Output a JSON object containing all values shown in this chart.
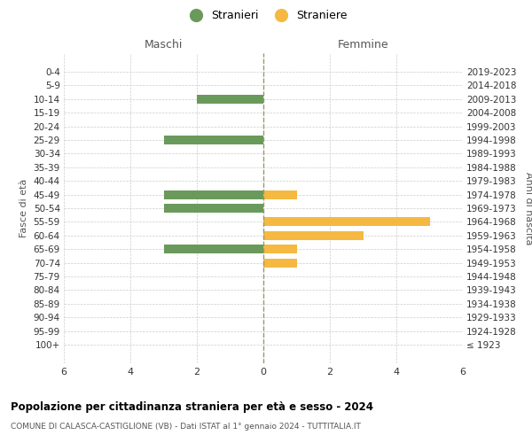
{
  "age_groups": [
    "100+",
    "95-99",
    "90-94",
    "85-89",
    "80-84",
    "75-79",
    "70-74",
    "65-69",
    "60-64",
    "55-59",
    "50-54",
    "45-49",
    "40-44",
    "35-39",
    "30-34",
    "25-29",
    "20-24",
    "15-19",
    "10-14",
    "5-9",
    "0-4"
  ],
  "birth_years": [
    "≤ 1923",
    "1924-1928",
    "1929-1933",
    "1934-1938",
    "1939-1943",
    "1944-1948",
    "1949-1953",
    "1954-1958",
    "1959-1963",
    "1964-1968",
    "1969-1973",
    "1974-1978",
    "1979-1983",
    "1984-1988",
    "1989-1993",
    "1994-1998",
    "1999-2003",
    "2004-2008",
    "2009-2013",
    "2014-2018",
    "2019-2023"
  ],
  "maschi": [
    0,
    0,
    0,
    0,
    0,
    0,
    0,
    3,
    0,
    0,
    3,
    3,
    0,
    0,
    0,
    3,
    0,
    0,
    2,
    0,
    0
  ],
  "femmine": [
    0,
    0,
    0,
    0,
    0,
    0,
    1,
    1,
    3,
    5,
    0,
    1,
    0,
    0,
    0,
    0,
    0,
    0,
    0,
    0,
    0
  ],
  "male_color": "#6a9a5b",
  "female_color": "#f5b942",
  "xlim": 6,
  "title": "Popolazione per cittadinanza straniera per età e sesso - 2024",
  "subtitle": "COMUNE DI CALASCA-CASTIGLIONE (VB) - Dati ISTAT al 1° gennaio 2024 - TUTTITALIA.IT",
  "ylabel_left": "Fasce di età",
  "ylabel_right": "Anni di nascita",
  "legend_male": "Stranieri",
  "legend_female": "Straniere",
  "maschi_label": "Maschi",
  "femmine_label": "Femmine",
  "bg_color": "#ffffff",
  "grid_color": "#cccccc",
  "center_line_color": "#999966"
}
